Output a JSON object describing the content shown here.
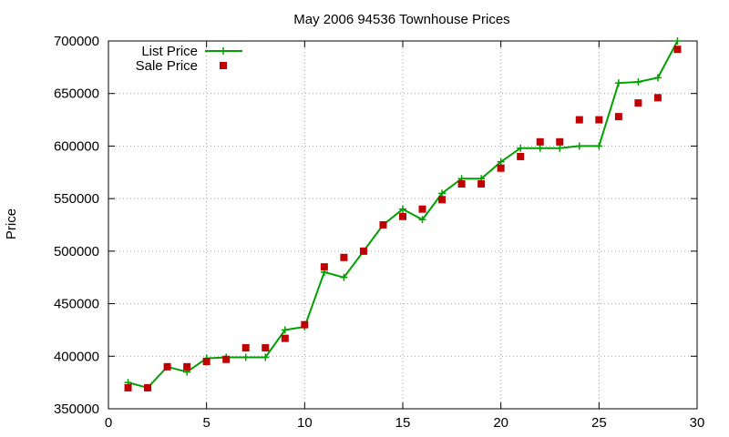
{
  "chart_data": {
    "type": "line",
    "title": "May 2006 94536 Townhouse Prices",
    "xlabel": "",
    "ylabel": "Price",
    "xlim": [
      0,
      30
    ],
    "ylim": [
      350000,
      700000
    ],
    "x_ticks": [
      0,
      5,
      10,
      15,
      20,
      25,
      30
    ],
    "y_ticks": [
      350000,
      400000,
      450000,
      500000,
      550000,
      600000,
      650000,
      700000
    ],
    "grid": true,
    "legend_position": "top-left",
    "series": [
      {
        "name": "List Price",
        "style": "linespoints",
        "color": "#00a000",
        "marker": "plus",
        "points": [
          [
            1,
            375000
          ],
          [
            2,
            370000
          ],
          [
            3,
            390000
          ],
          [
            4,
            385000
          ],
          [
            5,
            398000
          ],
          [
            6,
            399000
          ],
          [
            7,
            399000
          ],
          [
            8,
            399000
          ],
          [
            9,
            425000
          ],
          [
            10,
            428000
          ],
          [
            11,
            480000
          ],
          [
            12,
            475000
          ],
          [
            13,
            500000
          ],
          [
            14,
            525000
          ],
          [
            15,
            540000
          ],
          [
            16,
            530000
          ],
          [
            17,
            555000
          ],
          [
            18,
            569000
          ],
          [
            19,
            569000
          ],
          [
            20,
            585000
          ],
          [
            21,
            598000
          ],
          [
            22,
            598000
          ],
          [
            23,
            598000
          ],
          [
            24,
            600000
          ],
          [
            25,
            600000
          ],
          [
            26,
            660000
          ],
          [
            27,
            661000
          ],
          [
            28,
            665000
          ],
          [
            29,
            700000
          ]
        ]
      },
      {
        "name": "Sale Price",
        "style": "points",
        "color": "#c00000",
        "marker": "square",
        "points": [
          [
            1,
            370000
          ],
          [
            2,
            370000
          ],
          [
            3,
            390000
          ],
          [
            4,
            390000
          ],
          [
            5,
            395000
          ],
          [
            6,
            397000
          ],
          [
            7,
            408000
          ],
          [
            8,
            408000
          ],
          [
            9,
            417000
          ],
          [
            10,
            430000
          ],
          [
            11,
            485000
          ],
          [
            12,
            494000
          ],
          [
            13,
            500000
          ],
          [
            14,
            525000
          ],
          [
            15,
            533000
          ],
          [
            16,
            540000
          ],
          [
            17,
            549000
          ],
          [
            18,
            564000
          ],
          [
            19,
            564000
          ],
          [
            20,
            579000
          ],
          [
            21,
            590000
          ],
          [
            22,
            604000
          ],
          [
            23,
            604000
          ],
          [
            24,
            625000
          ],
          [
            25,
            625000
          ],
          [
            26,
            628000
          ],
          [
            27,
            641000
          ],
          [
            28,
            646000
          ],
          [
            29,
            692000
          ]
        ]
      }
    ]
  }
}
